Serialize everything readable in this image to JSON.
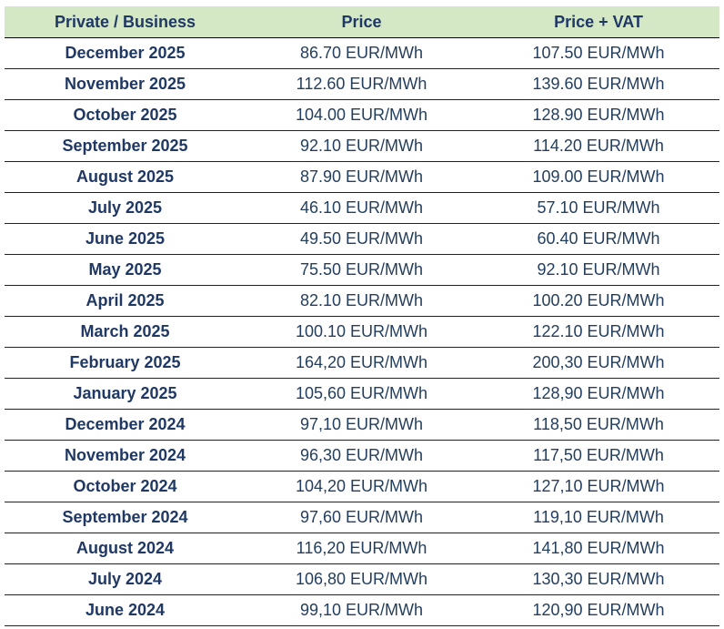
{
  "table": {
    "headers": [
      "Private / Business",
      "Price",
      "Price + VAT"
    ],
    "rows": [
      [
        "December 2025",
        "86.70 EUR/MWh",
        "107.50 EUR/MWh"
      ],
      [
        "November 2025",
        "112.60 EUR/MWh",
        "139.60 EUR/MWh"
      ],
      [
        "October 2025",
        "104.00 EUR/MWh",
        "128.90 EUR/MWh"
      ],
      [
        "September 2025",
        "92.10 EUR/MWh",
        "114.20 EUR/MWh"
      ],
      [
        "August 2025",
        "87.90 EUR/MWh",
        "109.00 EUR/MWh"
      ],
      [
        "July 2025",
        "46.10 EUR/MWh",
        "57.10 EUR/MWh"
      ],
      [
        "June 2025",
        "49.50 EUR/MWh",
        "60.40 EUR/MWh"
      ],
      [
        "May 2025",
        "75.50 EUR/MWh",
        "92.10 EUR/MWh"
      ],
      [
        "April 2025",
        "82.10 EUR/MWh",
        "100.20 EUR/MWh"
      ],
      [
        "March 2025",
        "100.10 EUR/MWh",
        "122.10 EUR/MWh"
      ],
      [
        "February 2025",
        "164,20 EUR/MWh",
        "200,30 EUR/MWh"
      ],
      [
        "January 2025",
        "105,60 EUR/MWh",
        "128,90 EUR/MWh"
      ],
      [
        "December 2024",
        "97,10 EUR/MWh",
        "118,50 EUR/MWh"
      ],
      [
        "November 2024",
        "96,30 EUR/MWh",
        "117,50 EUR/MWh"
      ],
      [
        "October 2024",
        "104,20 EUR/MWh",
        "127,10 EUR/MWh"
      ],
      [
        "September 2024",
        "97,60 EUR/MWh",
        "119,10 EUR/MWh"
      ],
      [
        "August 2024",
        "116,20 EUR/MWh",
        "141,80 EUR/MWh"
      ],
      [
        "July 2024",
        "106,80 EUR/MWh",
        "130,30 EUR/MWh"
      ],
      [
        "June 2024",
        "99,10 EUR/MWh",
        "120,90 EUR/MWh"
      ]
    ]
  }
}
